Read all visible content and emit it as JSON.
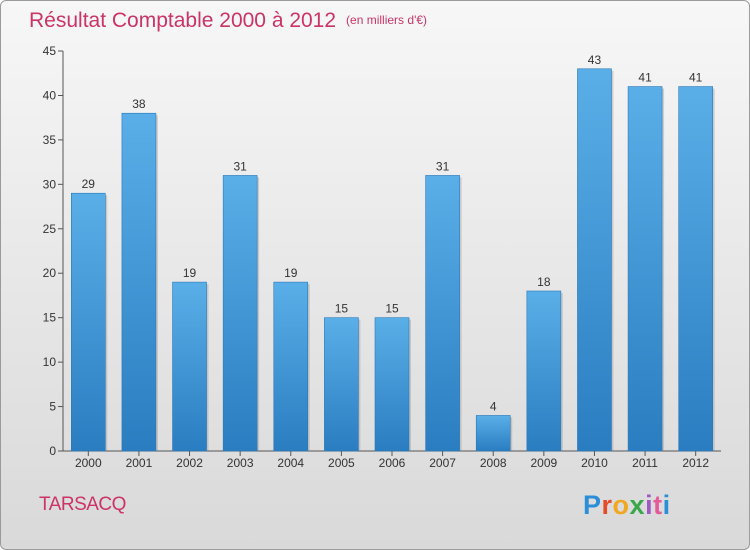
{
  "title": "Résultat Comptable 2000 à 2012",
  "subtitle": "(en milliers d'€)",
  "commune": "TARSACQ",
  "logo": {
    "p": "P",
    "r": "r",
    "o": "o",
    "x": "x",
    "i1": "i",
    "t": "t",
    "i2": "i"
  },
  "colors": {
    "bar": "#3a95d8",
    "title": "#cc3366"
  },
  "chart_data": {
    "type": "bar",
    "title": "Résultat Comptable 2000 à 2012",
    "subtitle": "(en milliers d'€)",
    "xlabel": "",
    "ylabel": "",
    "ylim": [
      0,
      45
    ],
    "yticks": [
      0,
      5,
      10,
      15,
      20,
      25,
      30,
      35,
      40,
      45
    ],
    "grid": false,
    "categories": [
      "2000",
      "2001",
      "2002",
      "2003",
      "2004",
      "2005",
      "2006",
      "2007",
      "2008",
      "2009",
      "2010",
      "2011",
      "2012"
    ],
    "values": [
      29,
      38,
      19,
      31,
      19,
      15,
      15,
      31,
      4,
      18,
      43,
      41,
      41
    ],
    "data_labels": [
      "29",
      "38",
      "19",
      "31",
      "19",
      "15",
      "15",
      "31",
      "4",
      "18",
      "43",
      "41",
      "41"
    ]
  }
}
